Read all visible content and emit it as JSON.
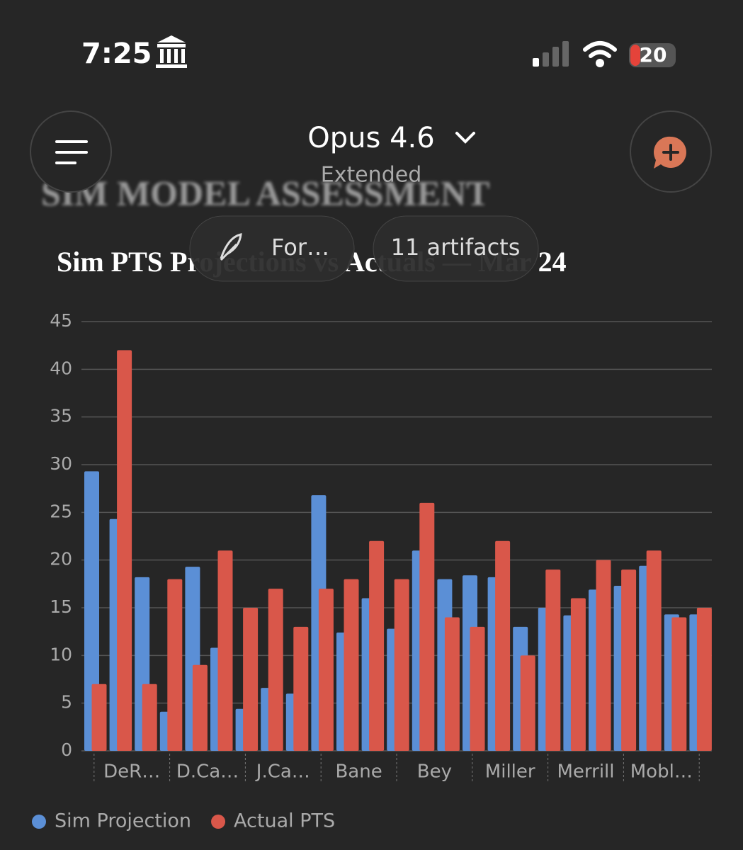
{
  "status_bar": {
    "time": "7:25",
    "battery": "20"
  },
  "header": {
    "model": "Opus 4.6",
    "mode": "Extended"
  },
  "document_heading": "SIM MODEL ASSESSMENT",
  "pills": {
    "style": "For…",
    "artifacts": "11 artifacts"
  },
  "chart_data": {
    "type": "bar",
    "title": "Sim PTS Projections vs Actuals — Mar 24",
    "categories": [
      null,
      "DeR…",
      null,
      null,
      "D.Ca…",
      null,
      null,
      "J.Ca…",
      null,
      null,
      "Bane",
      null,
      null,
      "Bey",
      null,
      null,
      "Miller",
      null,
      null,
      "Merrill",
      null,
      null,
      "Mobl…",
      null,
      null
    ],
    "series": [
      {
        "name": "Sim Projection",
        "color": "#5b8fd6",
        "values": [
          29.3,
          24.3,
          18.2,
          4.1,
          19.3,
          10.8,
          4.4,
          6.6,
          6.0,
          26.8,
          12.4,
          16.0,
          12.8,
          21.0,
          18.0,
          18.4,
          18.2,
          13.0,
          15.0,
          14.2,
          16.9,
          17.3,
          19.4,
          14.3,
          14.3
        ]
      },
      {
        "name": "Actual PTS",
        "color": "#d9574a",
        "values": [
          7,
          42,
          7,
          18,
          9,
          21,
          15,
          17,
          13,
          17,
          18,
          22,
          18,
          26,
          14,
          13,
          22,
          10,
          19,
          16,
          20,
          19,
          21,
          14,
          15
        ]
      }
    ],
    "ylim": [
      0,
      45
    ],
    "yticks": [
      0,
      5,
      10,
      15,
      20,
      25,
      30,
      35,
      40,
      45
    ],
    "grid": true,
    "legend": "bottom-left"
  }
}
